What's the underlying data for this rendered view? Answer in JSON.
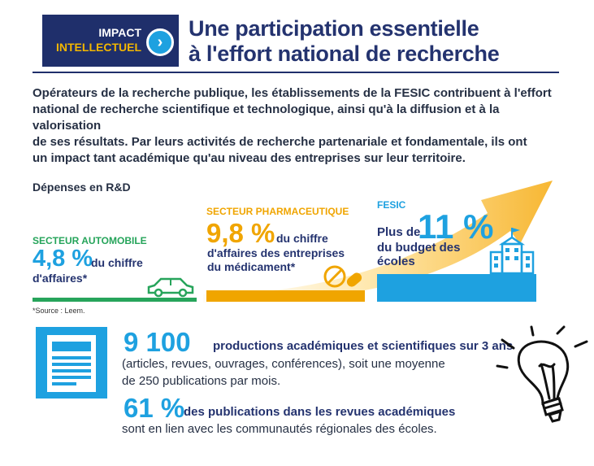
{
  "header": {
    "badge_line1": "IMPACT",
    "badge_line2": "INTELLECTUEL",
    "badge_icon": "chevron-right-icon",
    "title_line1": "Une participation essentielle",
    "title_line2": "à  l'effort national de recherche"
  },
  "intro": {
    "lines": [
      "Opérateurs de la recherche publique, les établissements de la FESIC contribuent à l'effort",
      "national de recherche scientifique et technologique, ainsi qu'à la diffusion et à la valorisation",
      "de ses résultats. Par leurs activités de recherche partenariale et fondamentale, ils ont",
      "un impact tant académique qu'au niveau des entreprises sur leur territoire."
    ]
  },
  "rd": {
    "label": "Dépenses en R&D",
    "automobile": {
      "title": "SECTEUR AUTOMOBILE",
      "value": "4,8 %",
      "desc1": "du chiffre",
      "desc2": "d'affaires*",
      "icon": "car-icon"
    },
    "pharma": {
      "title": "SECTEUR PHARMACEUTIQUE",
      "value": "9,8 %",
      "desc1": "du chiffre",
      "desc2": [
        "d'affaires des entreprises",
        "du médicament*"
      ],
      "icon": "pills-icon"
    },
    "fesic": {
      "title": "FESIC",
      "pre": "Plus de",
      "value": "11 %",
      "desc": [
        "du budget des",
        "écoles"
      ],
      "icon": "school-building-icon"
    },
    "source": "*Source : Leem."
  },
  "stats": {
    "stat1": {
      "value": "9 100",
      "desc": "productions académiques et scientifiques sur 3 ans",
      "line2": "(articles, revues, ouvrages, conférences), soit une moyenne",
      "line3": "de 250 publications par mois.",
      "icon": "newspaper-icon"
    },
    "stat2": {
      "value": "61 %",
      "desc": "des publications dans les revues académiques",
      "line2": "sont en lien avec les communautés régionales des écoles.",
      "icon": "lightbulb-icon"
    }
  },
  "colors": {
    "navy": "#1f2f6b",
    "blue": "#1ea1e0",
    "green": "#27a45b",
    "orange": "#f0a500",
    "yellow": "#f2b600"
  }
}
